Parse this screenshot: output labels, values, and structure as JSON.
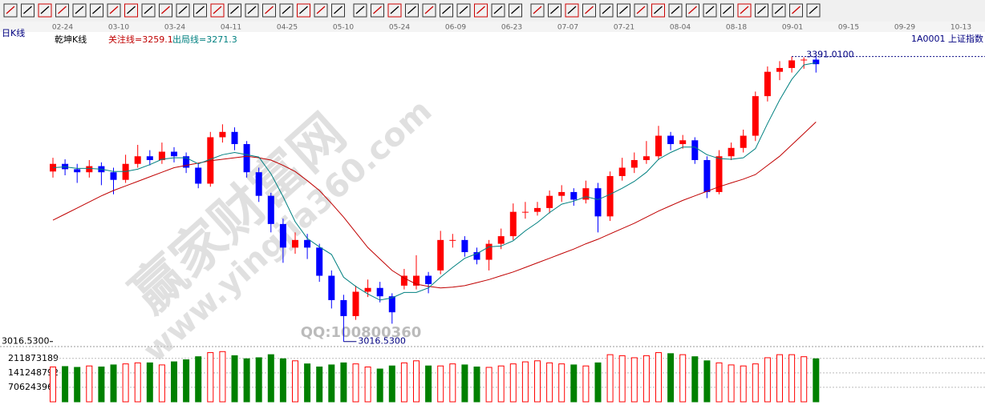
{
  "chart_data": {
    "type": "candlestick",
    "title": "1A0001 上证指数",
    "period": "日K线",
    "subtitle": "乾坤K线",
    "x_labels": [
      "02-24",
      "03-10",
      "03-24",
      "04-11",
      "04-25",
      "05-10",
      "05-24",
      "06-09",
      "06-23",
      "07-07",
      "07-21",
      "08-04",
      "08-18",
      "09-01",
      "09-15",
      "09-29",
      "10-13"
    ],
    "open": [
      3240,
      3250,
      3243,
      3239,
      3247,
      3239,
      3229,
      3250,
      3260,
      3255,
      3266,
      3260,
      3245,
      3224,
      3285,
      3292,
      3276,
      3239,
      3208,
      3171,
      3140,
      3150,
      3140,
      3103,
      3071,
      3050,
      3082,
      3087,
      3076,
      3090,
      3090,
      3103,
      3110,
      3150,
      3150,
      3134,
      3124,
      3145,
      3155,
      3187,
      3187,
      3192,
      3208,
      3213,
      3203,
      3218,
      3181,
      3234,
      3245,
      3255,
      3260,
      3287,
      3276,
      3281,
      3255,
      3213,
      3260,
      3271,
      3287,
      3339,
      3371,
      3376,
      3386,
      3387
    ],
    "high": [
      3258,
      3256,
      3250,
      3255,
      3252,
      3245,
      3262,
      3275,
      3268,
      3278,
      3272,
      3265,
      3250,
      3292,
      3302,
      3298,
      3280,
      3245,
      3212,
      3178,
      3160,
      3158,
      3145,
      3110,
      3078,
      3090,
      3098,
      3095,
      3080,
      3112,
      3130,
      3108,
      3162,
      3158,
      3155,
      3140,
      3150,
      3165,
      3198,
      3200,
      3200,
      3215,
      3222,
      3218,
      3228,
      3225,
      3240,
      3258,
      3265,
      3280,
      3300,
      3292,
      3288,
      3285,
      3260,
      3268,
      3278,
      3295,
      3345,
      3378,
      3385,
      3391.01,
      3390,
      3392
    ],
    "low": [
      3232,
      3235,
      3225,
      3232,
      3222,
      3210,
      3225,
      3245,
      3248,
      3250,
      3252,
      3238,
      3218,
      3220,
      3278,
      3268,
      3232,
      3200,
      3160,
      3120,
      3132,
      3125,
      3095,
      3060,
      3016.53,
      3045,
      3075,
      3068,
      3040,
      3085,
      3085,
      3080,
      3105,
      3140,
      3128,
      3118,
      3110,
      3138,
      3150,
      3178,
      3182,
      3185,
      3200,
      3195,
      3198,
      3160,
      3175,
      3228,
      3238,
      3250,
      3255,
      3268,
      3270,
      3250,
      3205,
      3210,
      3255,
      3265,
      3280,
      3332,
      3360,
      3370,
      3375,
      3370
    ],
    "close": [
      3250,
      3243,
      3239,
      3247,
      3239,
      3229,
      3250,
      3260,
      3255,
      3266,
      3260,
      3245,
      3224,
      3285,
      3292,
      3276,
      3239,
      3208,
      3171,
      3140,
      3150,
      3140,
      3103,
      3071,
      3050,
      3082,
      3087,
      3076,
      3055,
      3103,
      3103,
      3092,
      3150,
      3150,
      3134,
      3124,
      3145,
      3155,
      3187,
      3187,
      3192,
      3208,
      3213,
      3203,
      3218,
      3181,
      3234,
      3245,
      3255,
      3260,
      3287,
      3276,
      3281,
      3255,
      3213,
      3260,
      3271,
      3287,
      3339,
      3371,
      3376,
      3386,
      3387,
      3381
    ],
    "up_color": "#ff0000",
    "down_color": "#0000ff",
    "ylim": [
      3011,
      3418
    ],
    "yticks": [
      {
        "value": 3016.53,
        "label": "3016.5300"
      }
    ],
    "lines": [
      {
        "name": "关注线=3259.1",
        "color": "#c00000",
        "values": [
          3176,
          3184,
          3192,
          3200,
          3208,
          3215,
          3221,
          3227,
          3233,
          3239,
          3245,
          3248,
          3251,
          3254,
          3256,
          3258,
          3260,
          3258,
          3255,
          3248,
          3240,
          3228,
          3215,
          3198,
          3180,
          3160,
          3140,
          3125,
          3110,
          3100,
          3092,
          3089,
          3087,
          3088,
          3090,
          3094,
          3098,
          3103,
          3108,
          3114,
          3120,
          3126,
          3132,
          3138,
          3145,
          3151,
          3158,
          3165,
          3172,
          3180,
          3188,
          3195,
          3202,
          3208,
          3214,
          3220,
          3225,
          3230,
          3236,
          3248,
          3260,
          3275,
          3290,
          3305
        ]
      },
      {
        "name": "出局线=3271.3",
        "color": "#008080",
        "values": [
          3245,
          3246,
          3244,
          3244,
          3243,
          3240,
          3240,
          3243,
          3249,
          3256,
          3258,
          3258,
          3250,
          3256,
          3262,
          3265,
          3262,
          3259,
          3237,
          3207,
          3174,
          3152,
          3141,
          3131,
          3101,
          3089,
          3079,
          3071,
          3074,
          3081,
          3081,
          3087,
          3101,
          3114,
          3126,
          3132,
          3141,
          3142,
          3149,
          3162,
          3173,
          3186,
          3197,
          3201,
          3207,
          3203,
          3210,
          3218,
          3227,
          3239,
          3256,
          3265,
          3272,
          3272,
          3262,
          3257,
          3256,
          3258,
          3270,
          3303,
          3334,
          3361,
          3380,
          3383
        ]
      }
    ],
    "annotations": [
      {
        "index": 61,
        "value": 3391.01,
        "label": "3391.0100"
      },
      {
        "index": 24,
        "value": 3016.53,
        "label": "3016.5300"
      }
    ],
    "volume": {
      "values": [
        170000000,
        172000000,
        168000000,
        175000000,
        170000000,
        180000000,
        185000000,
        190000000,
        190000000,
        180000000,
        195000000,
        205000000,
        220000000,
        240000000,
        245000000,
        225000000,
        210000000,
        215000000,
        230000000,
        210000000,
        200000000,
        185000000,
        170000000,
        180000000,
        190000000,
        185000000,
        170000000,
        160000000,
        175000000,
        190000000,
        200000000,
        175000000,
        175000000,
        185000000,
        180000000,
        170000000,
        168000000,
        175000000,
        185000000,
        195000000,
        200000000,
        190000000,
        185000000,
        180000000,
        175000000,
        190000000,
        230000000,
        225000000,
        215000000,
        225000000,
        240000000,
        235000000,
        230000000,
        220000000,
        200000000,
        190000000,
        180000000,
        175000000,
        185000000,
        215000000,
        230000000,
        230000000,
        220000000,
        210000000
      ],
      "ylim": [
        0,
        250000000
      ],
      "yticks": [
        211873189,
        141248792,
        70624396
      ],
      "up_color": "#ff0000",
      "down_color": "#008000"
    },
    "watermark": [
      "赢家财富网",
      "www.yingjia360.com",
      "QQ:100800360"
    ]
  }
}
